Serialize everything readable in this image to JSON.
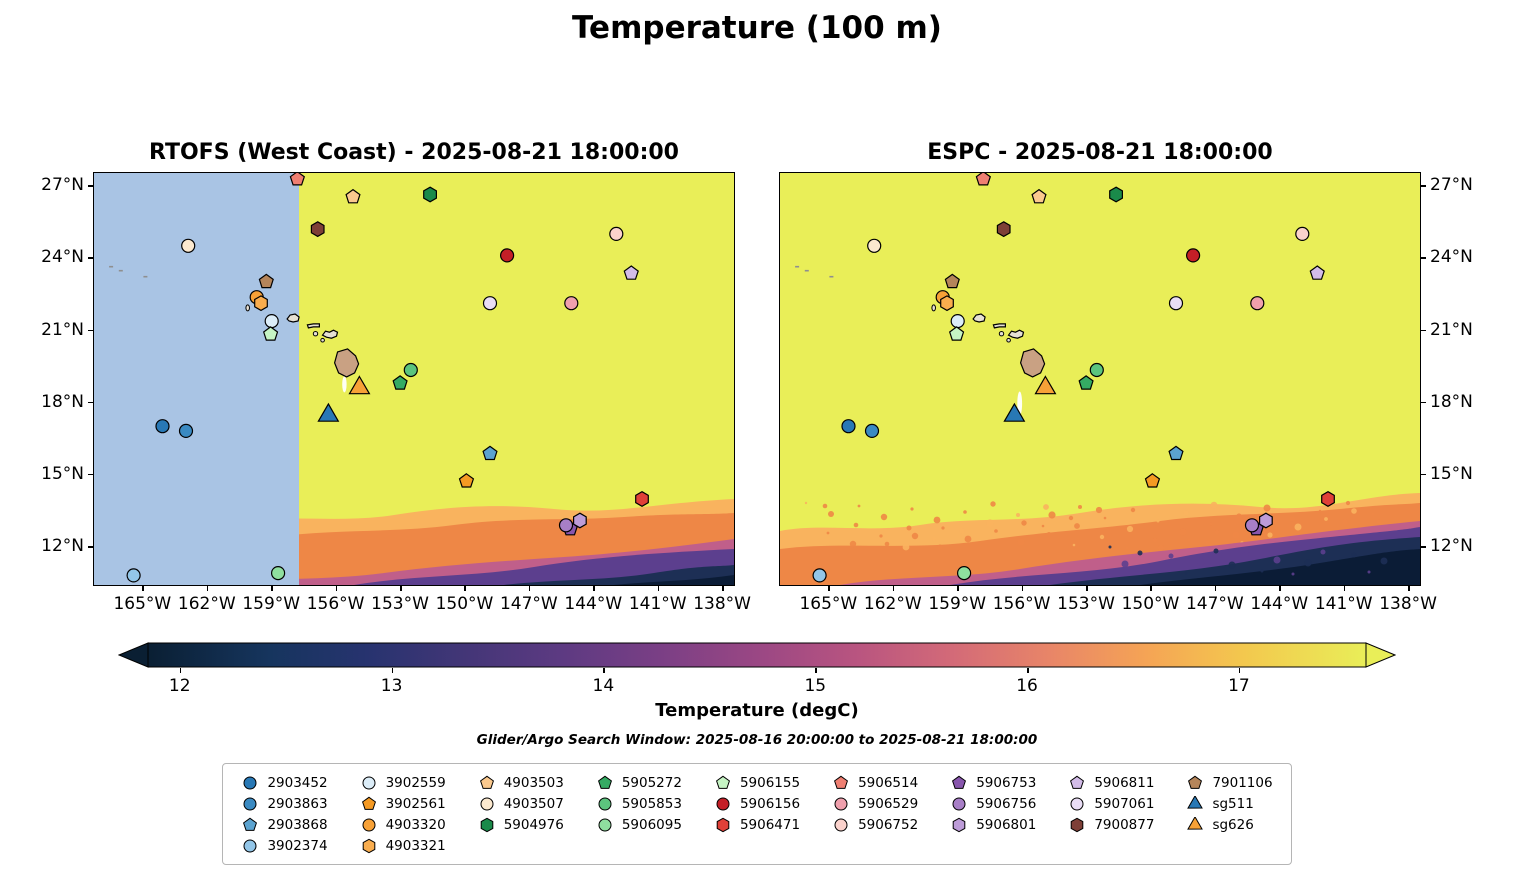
{
  "chart_data": {
    "type": "heatmap",
    "title": "Temperature (100 m)",
    "panels": [
      {
        "title": "RTOFS (West Coast) - 2025-08-21 18:00:00",
        "model": "RTOFS (West Coast)",
        "valid_time": "2025-08-21 18:00:00",
        "nodata_region": true,
        "nodata_frac": 0.32,
        "front": "smooth",
        "lat_labels": "left"
      },
      {
        "title": "ESPC - 2025-08-21 18:00:00",
        "model": "ESPC",
        "valid_time": "2025-08-21 18:00:00",
        "nodata_region": false,
        "front": "speckled",
        "lat_labels": "right"
      }
    ],
    "extent": {
      "lon_min": -167.3,
      "lon_max": -137.4,
      "lat_min": 10.3,
      "lat_max": 27.55
    },
    "lon_ticks": [
      {
        "v": -165,
        "label": "165°W"
      },
      {
        "v": -162,
        "label": "162°W"
      },
      {
        "v": -159,
        "label": "159°W"
      },
      {
        "v": -156,
        "label": "156°W"
      },
      {
        "v": -153,
        "label": "153°W"
      },
      {
        "v": -150,
        "label": "150°W"
      },
      {
        "v": -147,
        "label": "147°W"
      },
      {
        "v": -144,
        "label": "144°W"
      },
      {
        "v": -141,
        "label": "141°W"
      },
      {
        "v": -138,
        "label": "138°W"
      }
    ],
    "lat_ticks": [
      {
        "v": 27,
        "label": "27°N"
      },
      {
        "v": 24,
        "label": "24°N"
      },
      {
        "v": 21,
        "label": "21°N"
      },
      {
        "v": 18,
        "label": "18°N"
      },
      {
        "v": 15,
        "label": "15°N"
      },
      {
        "v": 12,
        "label": "12°N"
      }
    ],
    "colorbar": {
      "label": "Temperature (degC)",
      "min": 11.85,
      "max": 17.6,
      "ticks": [
        12,
        13,
        14,
        15,
        16,
        17
      ],
      "stops": [
        [
          0.0,
          "#0a1f33"
        ],
        [
          0.1,
          "#16355e"
        ],
        [
          0.18,
          "#27336f"
        ],
        [
          0.26,
          "#433677"
        ],
        [
          0.34,
          "#5d3a82"
        ],
        [
          0.42,
          "#7a3f85"
        ],
        [
          0.5,
          "#9a4784"
        ],
        [
          0.58,
          "#b85480"
        ],
        [
          0.66,
          "#d36a78"
        ],
        [
          0.74,
          "#e88568"
        ],
        [
          0.82,
          "#f5a455"
        ],
        [
          0.9,
          "#f3c84e"
        ],
        [
          1.0,
          "#e9ee58"
        ]
      ]
    },
    "search_window": "Glider/Argo Search Window: 2025-08-16 20:00:00 to 2025-08-21 18:00:00",
    "colors": {
      "ocean": "#e9ee58",
      "nodata": "#a9c4e4",
      "band1": "#f9b35e",
      "band2": "#ee8746",
      "band3": "#c05f8a",
      "band4": "#5c3f8e",
      "band5": "#1d2f55",
      "band6": "#0b1c36",
      "island": "#c9a183",
      "islet": "#e6e0d4",
      "shoal": "#8f8f8f"
    },
    "legend_cols": 9,
    "floats": [
      {
        "id": "2903452",
        "shape": "circle",
        "color": "#2878b5",
        "lon": -164.1,
        "lat": 16.95
      },
      {
        "id": "2903863",
        "shape": "circle",
        "color": "#3a8ac2",
        "lon": -163.0,
        "lat": 16.75
      },
      {
        "id": "2903868",
        "shape": "pentagon",
        "color": "#5ba3d0",
        "lon": -148.8,
        "lat": 15.8
      },
      {
        "id": "3902374",
        "shape": "circle",
        "color": "#93c6e8",
        "lon": -165.45,
        "lat": 10.7
      },
      {
        "id": "3902559",
        "shape": "circle",
        "color": "#dcedf8",
        "lon": -159.0,
        "lat": 21.35
      },
      {
        "id": "3902561",
        "shape": "pentagon",
        "color": "#f59a23",
        "lon": -149.9,
        "lat": 14.65
      },
      {
        "id": "4903320",
        "shape": "circle",
        "color": "#f7a137",
        "lon": -159.7,
        "lat": 22.35
      },
      {
        "id": "4903321",
        "shape": "hexagon",
        "color": "#f9ad4e",
        "lon": -159.5,
        "lat": 22.1
      },
      {
        "id": "4903503",
        "shape": "pentagon",
        "color": "#fbc98e",
        "lon": -155.2,
        "lat": 26.55
      },
      {
        "id": "4903507",
        "shape": "circle",
        "color": "#fce9cf",
        "lon": -162.9,
        "lat": 24.5
      },
      {
        "id": "5904976",
        "shape": "hexagon",
        "color": "#1a8a4a",
        "lon": -151.6,
        "lat": 26.65
      },
      {
        "id": "5905272",
        "shape": "pentagon",
        "color": "#35ab63",
        "lon": -153.0,
        "lat": 18.75
      },
      {
        "id": "5905853",
        "shape": "circle",
        "color": "#5cc47e",
        "lon": -152.5,
        "lat": 19.3
      },
      {
        "id": "5906095",
        "shape": "circle",
        "color": "#8fdf9f",
        "lon": -158.7,
        "lat": 10.8
      },
      {
        "id": "5906155",
        "shape": "pentagon",
        "color": "#c6f4c4",
        "lon": -159.05,
        "lat": 20.8
      },
      {
        "id": "5906156",
        "shape": "circle",
        "color": "#c41f27",
        "lon": -148.0,
        "lat": 24.1
      },
      {
        "id": "5906471",
        "shape": "hexagon",
        "color": "#e04038",
        "lon": -141.7,
        "lat": 13.9
      },
      {
        "id": "5906514",
        "shape": "pentagon",
        "color": "#ef7f72",
        "lon": -157.8,
        "lat": 27.3
      },
      {
        "id": "5906529",
        "shape": "circle",
        "color": "#f0a0ad",
        "lon": -145.0,
        "lat": 22.1
      },
      {
        "id": "5906752",
        "shape": "circle",
        "color": "#fbd2cc",
        "lon": -142.9,
        "lat": 25.0
      },
      {
        "id": "5906753",
        "shape": "pentagon",
        "color": "#8856ad",
        "lon": -145.05,
        "lat": 12.65
      },
      {
        "id": "5906756",
        "shape": "circle",
        "color": "#a87fc7",
        "lon": -145.25,
        "lat": 12.8
      },
      {
        "id": "5906801",
        "shape": "hexagon",
        "color": "#bd9cd8",
        "lon": -144.6,
        "lat": 13.0
      },
      {
        "id": "5906811",
        "shape": "pentagon",
        "color": "#d3bce8",
        "lon": -142.2,
        "lat": 23.35
      },
      {
        "id": "5907061",
        "shape": "circle",
        "color": "#e9ddf5",
        "lon": -148.8,
        "lat": 22.1
      },
      {
        "id": "7900877",
        "shape": "hexagon",
        "color": "#7e3f37",
        "lon": -156.85,
        "lat": 25.2
      },
      {
        "id": "7901106",
        "shape": "pentagon",
        "color": "#b5855a",
        "lon": -159.25,
        "lat": 23.0
      },
      {
        "id": "sg511",
        "shape": "triangle",
        "color": "#2878b5",
        "lon": -156.35,
        "lat": 17.4
      },
      {
        "id": "sg626",
        "shape": "triangle",
        "color": "#f7a137",
        "lon": -154.9,
        "lat": 18.55
      }
    ]
  }
}
